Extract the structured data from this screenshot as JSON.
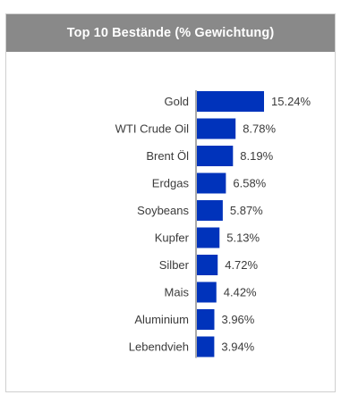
{
  "panel": {
    "title": "Top 10 Bestände (% Gewichtung)"
  },
  "chart_data": {
    "type": "bar",
    "orientation": "horizontal",
    "categories": [
      "Gold",
      "WTI Crude Oil",
      "Brent Öl",
      "Erdgas",
      "Soybeans",
      "Kupfer",
      "Silber",
      "Mais",
      "Aluminium",
      "Lebendvieh"
    ],
    "values": [
      15.24,
      8.78,
      8.19,
      6.58,
      5.87,
      5.13,
      4.72,
      4.42,
      3.96,
      3.94
    ],
    "value_labels": [
      "15.24%",
      "8.78%",
      "8.19%",
      "6.58%",
      "5.87%",
      "5.13%",
      "4.72%",
      "4.42%",
      "3.96%",
      "3.94%"
    ],
    "bar_color": "#0033bb",
    "axis_line_color": "#555555",
    "grid": false,
    "legend": "none"
  }
}
